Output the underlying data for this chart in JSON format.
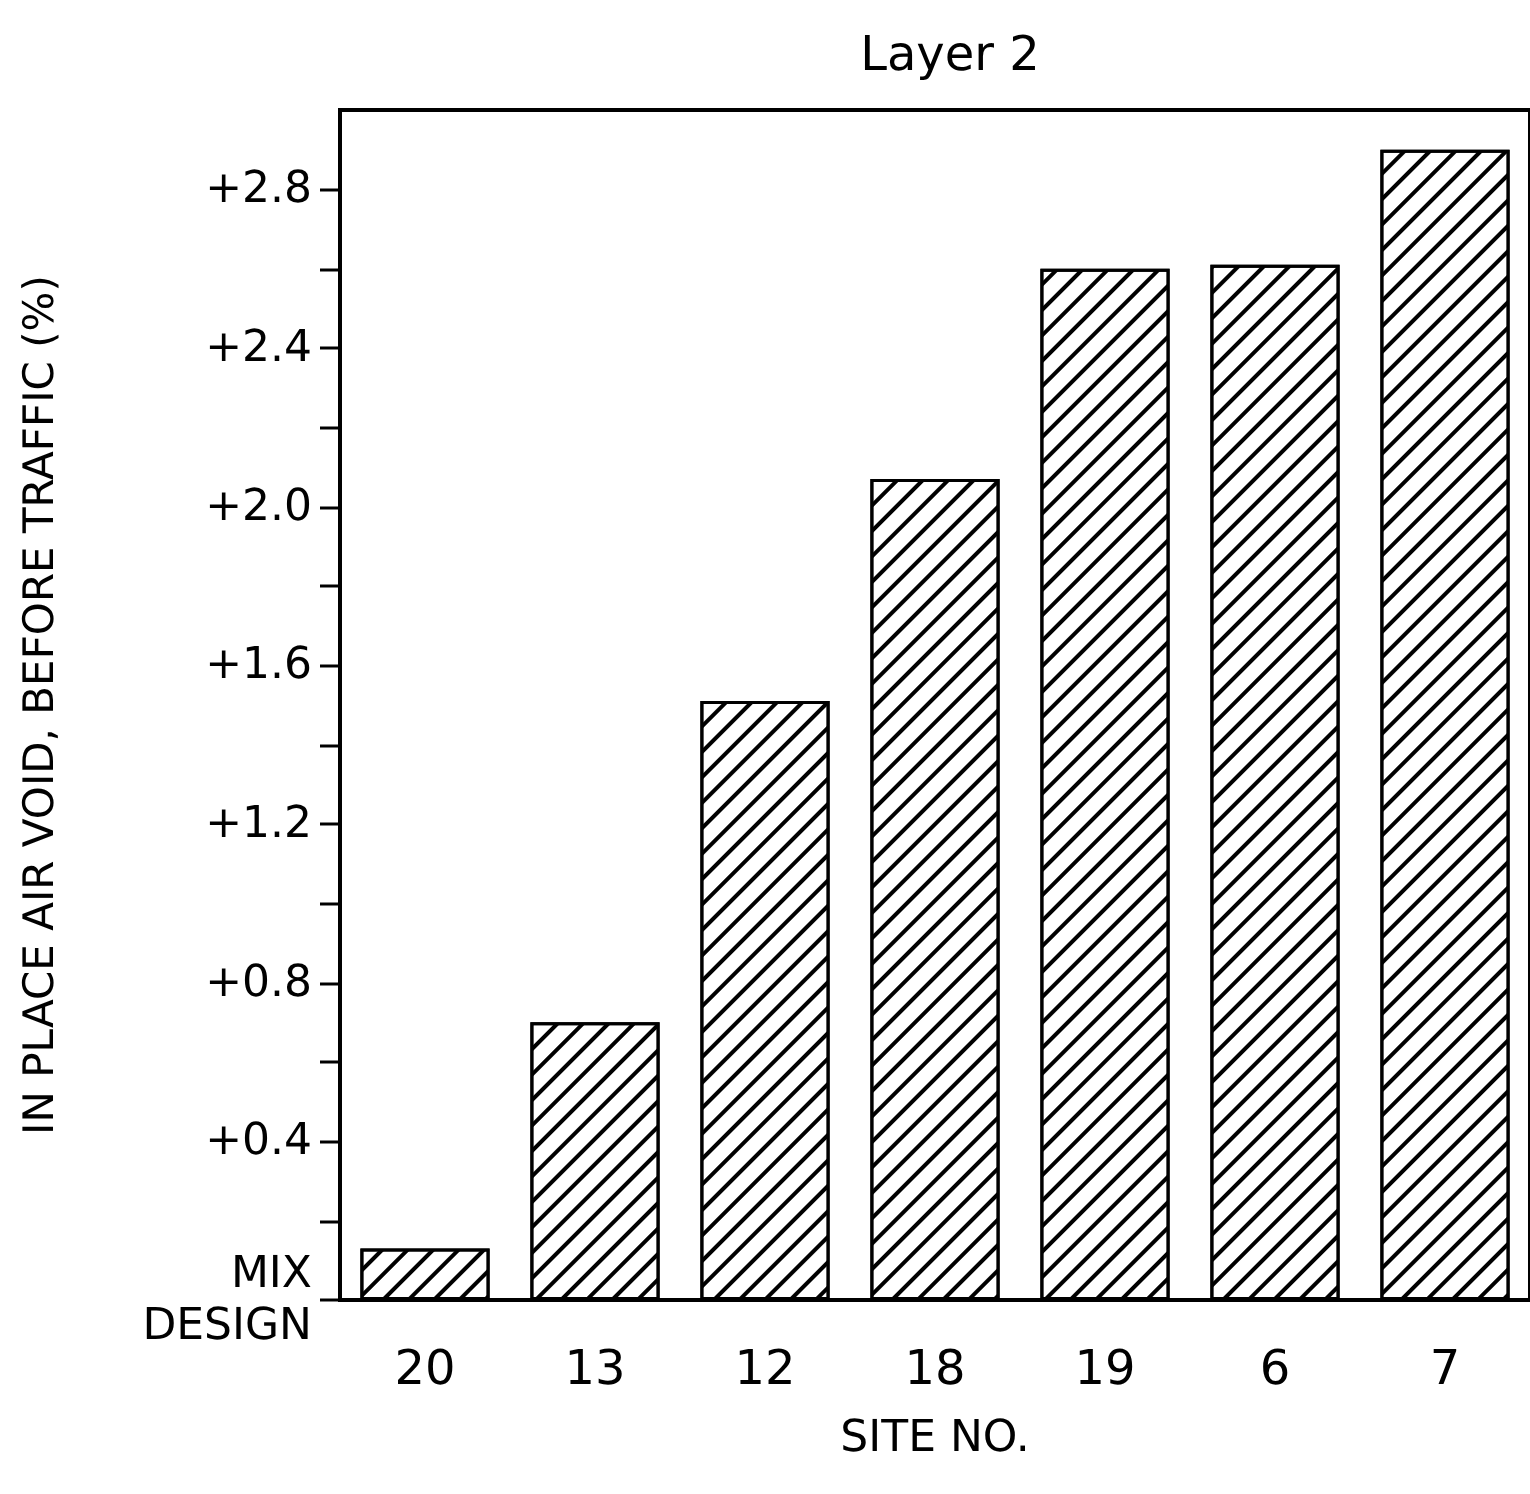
{
  "chart_data": {
    "type": "bar",
    "title": "Layer 2",
    "xlabel": "SITE NO.",
    "ylabel": "IN PLACE AIR VOID, BEFORE TRAFFIC (%)",
    "categories": [
      "20",
      "13",
      "12",
      "18",
      "19",
      "6",
      "7"
    ],
    "values": [
      0.13,
      0.7,
      1.51,
      2.07,
      2.6,
      2.61,
      2.9
    ],
    "color": "#000000",
    "ylim": [
      0,
      3.0
    ],
    "yticks": [
      {
        "value": 0,
        "label": "MIX\nDESIGN"
      },
      {
        "value": 0.2,
        "label": null
      },
      {
        "value": 0.4,
        "label": "+0.4"
      },
      {
        "value": 0.6,
        "label": null
      },
      {
        "value": 0.8,
        "label": "+0.8"
      },
      {
        "value": 1.0,
        "label": null
      },
      {
        "value": 1.2,
        "label": "+1.2"
      },
      {
        "value": 1.4,
        "label": null
      },
      {
        "value": 1.6,
        "label": "+1.6"
      },
      {
        "value": 1.8,
        "label": null
      },
      {
        "value": 2.0,
        "label": "+2.0"
      },
      {
        "value": 2.2,
        "label": null
      },
      {
        "value": 2.4,
        "label": "+2.4"
      },
      {
        "value": 2.6,
        "label": null
      },
      {
        "value": 2.8,
        "label": "+2.8"
      }
    ],
    "data_labels": false
  }
}
